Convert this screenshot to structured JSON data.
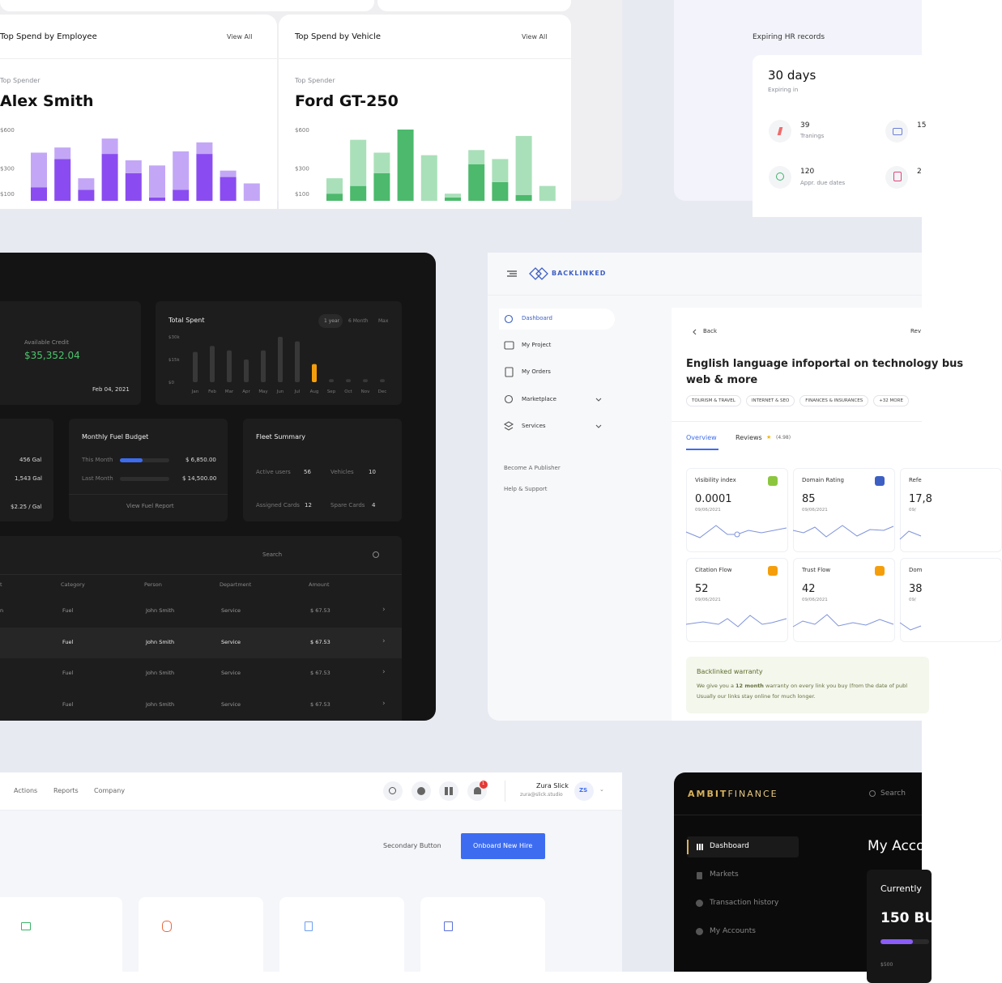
{
  "spend_employee": {
    "title": "Top Spend by Employee",
    "link": "View All",
    "caption": "Top Spender",
    "name": "Alex Smith",
    "ylim": [
      0,
      600
    ],
    "yticks": [
      {
        "value": 600,
        "label": "$600"
      },
      {
        "value": 300,
        "label": "$300"
      },
      {
        "value": 100,
        "label": "$100"
      }
    ],
    "series": [
      {
        "color": "#8a4cf0",
        "values": [
          150,
          370,
          130,
          410,
          260,
          70,
          130,
          410,
          230,
          0
        ]
      },
      {
        "color": "#c3a7f6",
        "values": [
          270,
          90,
          90,
          120,
          100,
          250,
          300,
          90,
          50,
          180
        ]
      }
    ]
  },
  "spend_vehicle": {
    "title": "Top Spend by Vehicle",
    "link": "View All",
    "caption": "Top Spender",
    "name": "Ford GT-250",
    "ylim": [
      0,
      600
    ],
    "yticks": [
      {
        "value": 600,
        "label": "$600"
      },
      {
        "value": 300,
        "label": "$300"
      },
      {
        "value": 100,
        "label": "$100"
      }
    ],
    "series": [
      {
        "color": "#4cb96c",
        "values": [
          100,
          160,
          260,
          600,
          0,
          70,
          330,
          190,
          90,
          0
        ]
      },
      {
        "color": "#a9e0b9",
        "values": [
          120,
          360,
          160,
          0,
          400,
          30,
          110,
          180,
          460,
          160
        ]
      }
    ]
  },
  "hr_records": {
    "title": "Expiring HR records",
    "days": "30 days",
    "caption": "Expiring in",
    "items": [
      {
        "value": "39",
        "label": "Tranings"
      },
      {
        "value": "15"
      },
      {
        "value": "120",
        "label": "Appr. due dates"
      },
      {
        "value": "2"
      }
    ]
  },
  "fleet": {
    "credit": {
      "label": "Available Credit",
      "amount": "$35,352.04",
      "date": "Feb 04, 2021"
    },
    "total_spent": {
      "title": "Total Spent",
      "tabs": [
        "1 year",
        "6 Month",
        "Max"
      ],
      "categories": [
        "Jan",
        "Feb",
        "Mar",
        "Apr",
        "May",
        "Jun",
        "Jul",
        "Aug",
        "Sep",
        "Oct",
        "Nov",
        "Dec"
      ],
      "values": [
        20000,
        24000,
        21000,
        15000,
        21000,
        30000,
        27000,
        12000,
        2000,
        2000,
        2000,
        2000
      ],
      "colors": [
        "#383838",
        "#383838",
        "#383838",
        "#383838",
        "#383838",
        "#383838",
        "#383838",
        "#f59e0b",
        "#383838",
        "#383838",
        "#383838",
        "#383838"
      ],
      "ylim": [
        0,
        30000
      ],
      "yticks": [
        {
          "value": 30000,
          "label": "$30k"
        },
        {
          "value": 15000,
          "label": "$15k"
        },
        {
          "value": 0,
          "label": "$0"
        }
      ]
    },
    "fuel_stats": [
      "456 Gal",
      "1,543 Gal",
      "$2.25 / Gal"
    ],
    "budget": {
      "title": "Monthly Fuel Budget",
      "rows": [
        {
          "label": "This Month",
          "amount": "$ 6,850.00"
        },
        {
          "label": "Last Month",
          "amount": "$ 14,500.00"
        }
      ],
      "link": "View Fuel Report"
    },
    "summary": {
      "title": "Fleet Summary",
      "items": [
        {
          "label": "Active users",
          "value": "56"
        },
        {
          "label": "Vehicles",
          "value": "10"
        },
        {
          "label": "Assigned Cards",
          "value": "12"
        },
        {
          "label": "Spare Cards",
          "value": "4"
        }
      ]
    },
    "table": {
      "search": "Search",
      "headers": [
        "t",
        "Category",
        "Person",
        "Department",
        "Amount"
      ],
      "rows": [
        [
          "n",
          "Fuel",
          "John Smith",
          "Service",
          "$ 67.53"
        ],
        [
          "Fuel",
          "John Smith",
          "Service",
          "$ 67.53"
        ],
        [
          "Fuel",
          "John Smith",
          "Service",
          "$ 67.53"
        ],
        [
          "Fuel",
          "John Smith",
          "Service",
          "$ 67.53"
        ]
      ]
    }
  },
  "backlinked": {
    "logo": "BACKLINKED",
    "nav": [
      "Dashboard",
      "My Project",
      "My Orders",
      "Marketplace",
      "Services"
    ],
    "links": [
      "Become A Publisher",
      "Help & Support"
    ],
    "back": "Back",
    "review": "Rev",
    "title_lines": [
      "English language infoportal on technology bus",
      "web & more"
    ],
    "tags": [
      "TOURISM & TRAVEL",
      "INTERNET & SEO",
      "FINANCES & INSURANCES",
      "+32 MORE"
    ],
    "tabs": {
      "overview": "Overview",
      "reviews": "Reviews",
      "rating": "(4.98)"
    },
    "metrics": [
      {
        "label": "Visibility index",
        "value": "0.0001",
        "date": "09/06/2021"
      },
      {
        "label": "Domain Rating",
        "value": "85",
        "date": "09/06/2021"
      },
      {
        "label": "Refe",
        "value": "17,8",
        "date": "09/"
      },
      {
        "label": "Citation Flow",
        "value": "52",
        "date": "09/06/2021"
      },
      {
        "label": "Trust Flow",
        "value": "42",
        "date": "09/06/2021"
      },
      {
        "label": "Dom",
        "value": "38",
        "date": "09/"
      }
    ],
    "warranty": {
      "title": "Backlinked warranty",
      "text_before": "We give you a ",
      "highlight": "12 month",
      "text_after": " warranty on every link you buy (from the date of publ",
      "note": "Usually our links stay online for much longer."
    }
  },
  "hr_app": {
    "nav": [
      "Actions",
      "Reports",
      "Company"
    ],
    "badge": "1",
    "user": {
      "name": "Zura Slick",
      "email": "zura@slick.studio",
      "initials": "ZS"
    },
    "buttons": [
      "Secondary Button",
      "Onboard New Hire"
    ]
  },
  "ambit": {
    "logo_a": "AMBIT",
    "logo_b": "FINANCE",
    "search": "Search",
    "nav": [
      "Dashboard",
      "Markets",
      "Transaction history",
      "My Accounts"
    ],
    "heading": "My Acco",
    "card_label": "Currently",
    "card_value": "150 BU",
    "axis": "$500"
  }
}
